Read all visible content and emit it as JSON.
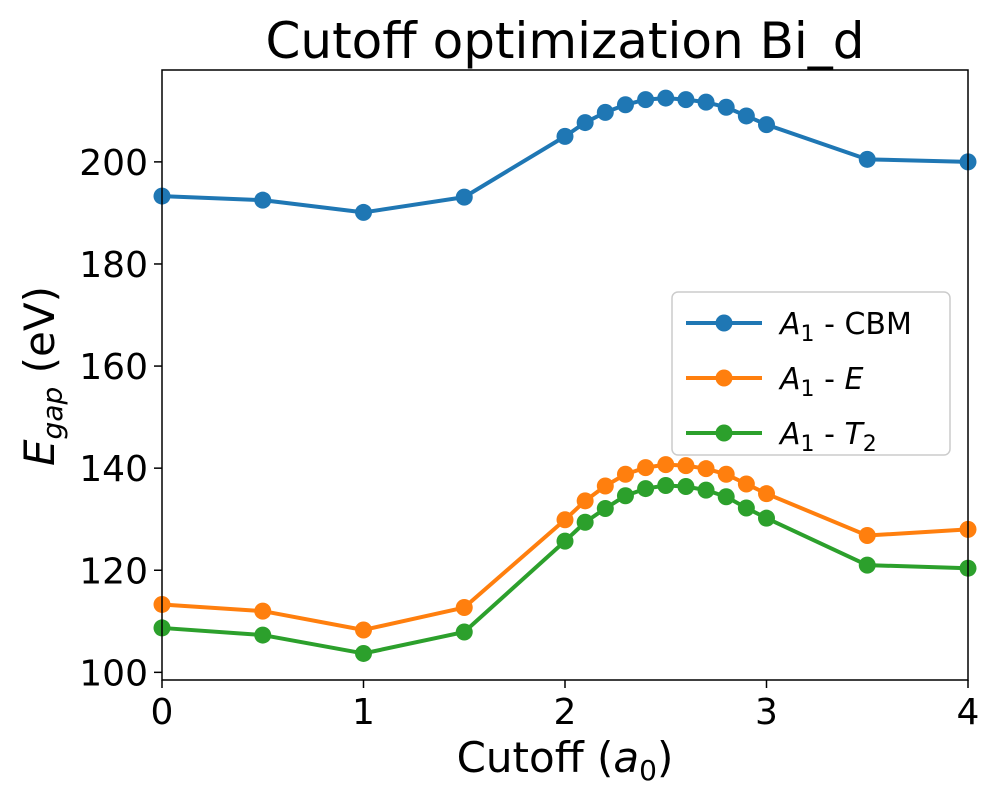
{
  "chart_data": {
    "type": "line",
    "title": "Cutoff optimization Bi_d",
    "xlabel": {
      "prefix": "Cutoff (",
      "var": "a",
      "sub": "0",
      "suffix": ")"
    },
    "ylabel": {
      "var": "E",
      "sub": "gap",
      "suffix": " (eV)"
    },
    "xlim": [
      0,
      4
    ],
    "ylim": [
      98.5,
      218
    ],
    "xticks": [
      0,
      1,
      2,
      3,
      4
    ],
    "yticks": [
      100,
      120,
      140,
      160,
      180,
      200
    ],
    "grid": false,
    "legend_position": "center-right",
    "x": [
      0,
      0.5,
      1,
      1.5,
      2,
      2.1,
      2.2,
      2.3,
      2.4,
      2.5,
      2.6,
      2.7,
      2.8,
      2.9,
      3,
      3.5,
      4
    ],
    "series": [
      {
        "name": "A1 - CBM",
        "legend": {
          "var": "A",
          "sub": "1",
          "sep": " - ",
          "tail": "CBM",
          "tail_italic": false,
          "tail_sub": ""
        },
        "color": "#1f77b4",
        "values": [
          193.3,
          192.5,
          190.1,
          193.1,
          205.0,
          207.7,
          209.7,
          211.2,
          212.2,
          212.5,
          212.2,
          211.7,
          210.7,
          209.0,
          207.3,
          200.5,
          200.0
        ]
      },
      {
        "name": "A1 - E",
        "legend": {
          "var": "A",
          "sub": "1",
          "sep": " - ",
          "tail": "E",
          "tail_italic": true,
          "tail_sub": ""
        },
        "color": "#ff7f0e",
        "values": [
          113.3,
          112.0,
          108.3,
          112.7,
          129.9,
          133.6,
          136.5,
          138.8,
          140.1,
          140.7,
          140.5,
          139.9,
          138.8,
          136.9,
          135.0,
          126.8,
          128.0
        ]
      },
      {
        "name": "A1 - T2",
        "legend": {
          "var": "A",
          "sub": "1",
          "sep": " - ",
          "tail": "T",
          "tail_italic": true,
          "tail_sub": "2"
        },
        "color": "#2ca02c",
        "values": [
          108.7,
          107.3,
          103.7,
          107.9,
          125.7,
          129.4,
          132.1,
          134.6,
          136.0,
          136.6,
          136.4,
          135.7,
          134.4,
          132.2,
          130.2,
          121.0,
          120.4
        ]
      }
    ]
  }
}
